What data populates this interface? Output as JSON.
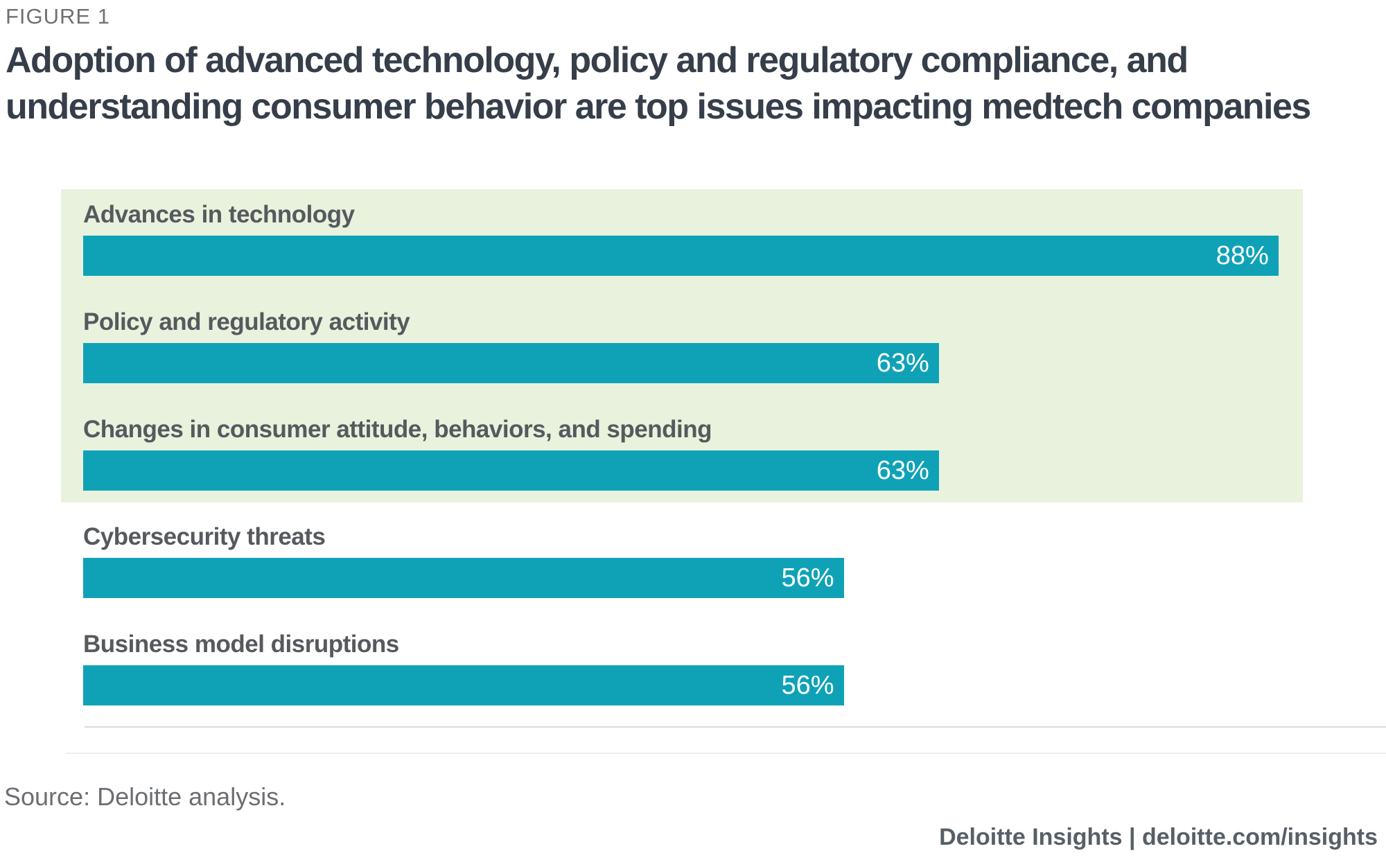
{
  "figure_label": "FIGURE 1",
  "title": {
    "lines": [
      "Adoption of advanced technology, policy and regulatory compliance, and",
      "understanding consumer behavior are top issues impacting medtech companies"
    ],
    "full_text": "Adoption of advanced technology, policy and regulatory compliance, and understanding consumer behavior are top issues impacting medtech companies"
  },
  "chart_data": {
    "type": "bar",
    "orientation": "horizontal",
    "categories": [
      "Advances in technology",
      "Policy and regulatory activity",
      "Changes in consumer attitude, behaviors, and spending",
      "Cybersecurity threats",
      "Business model disruptions"
    ],
    "values": [
      88,
      63,
      63,
      56,
      56
    ],
    "value_labels": [
      "88%",
      "63%",
      "63%",
      "56%",
      "56%"
    ],
    "unit": "percent",
    "xlim": [
      0,
      100
    ],
    "grid": false,
    "legend": "none",
    "value_label_position": "inside-end",
    "highlighted_rows": [
      0,
      1,
      2
    ],
    "bar_color": "#0FA2B7",
    "highlight_band_color": "#E9F2DC",
    "label_color": "#56595E",
    "value_text_color": "#ffffff"
  },
  "footer": {
    "source": "Source: Deloitte analysis.",
    "branding": "Deloitte Insights | deloitte.com/insights"
  }
}
